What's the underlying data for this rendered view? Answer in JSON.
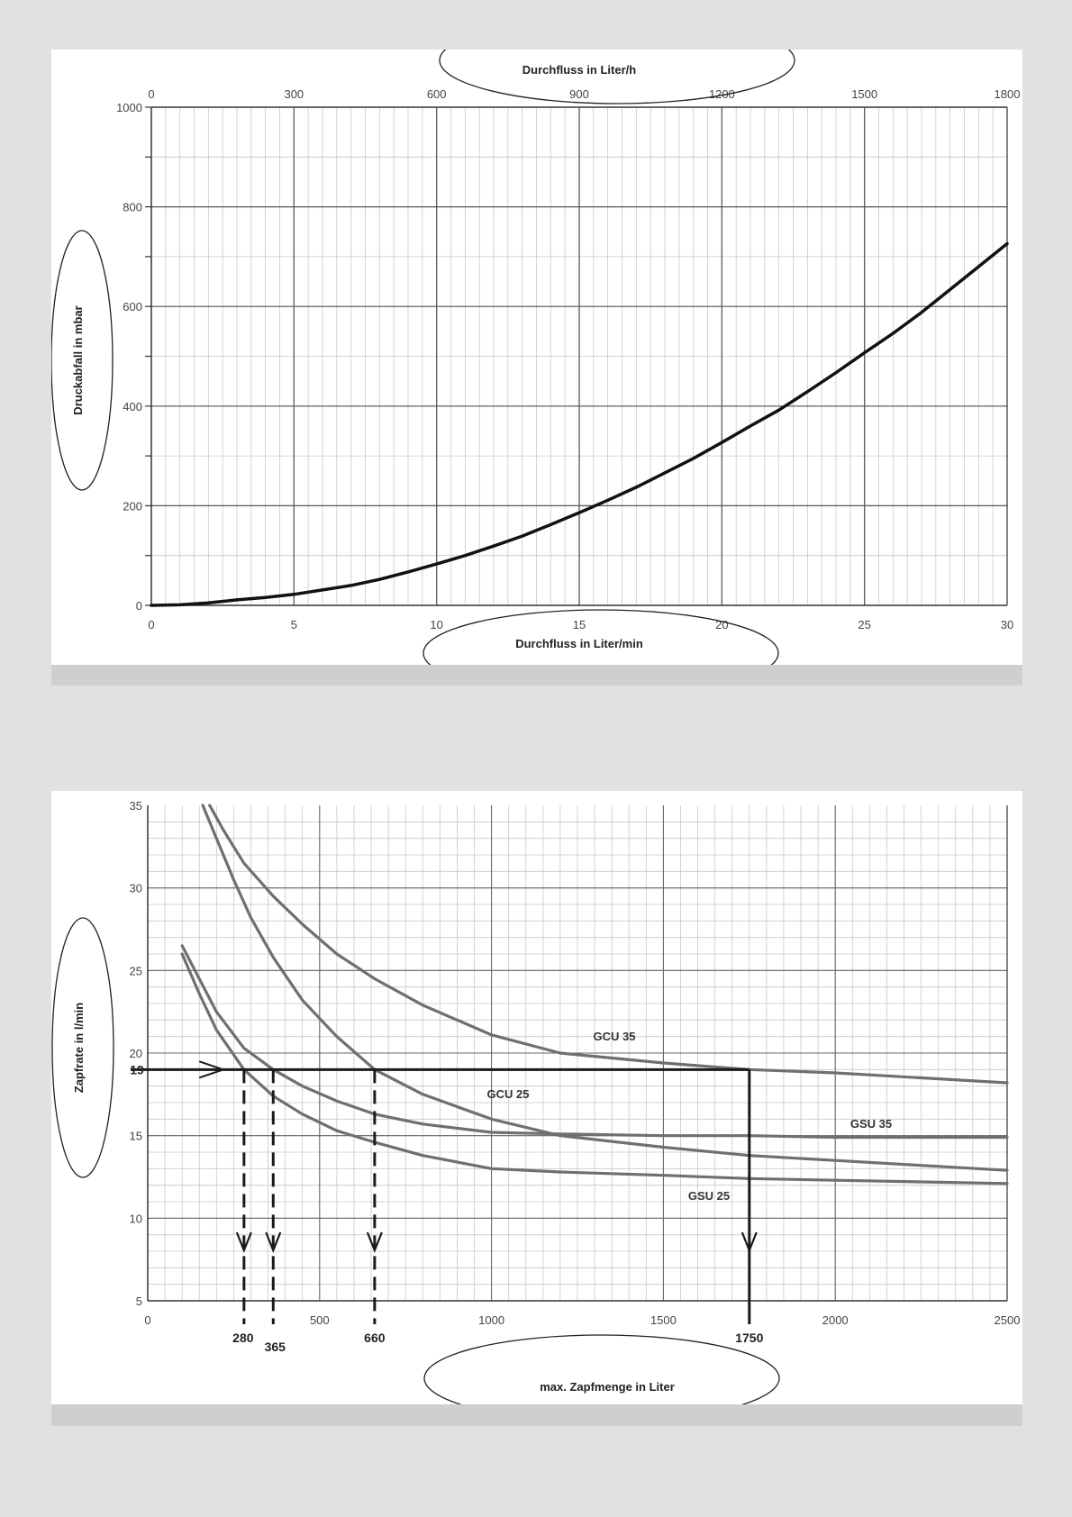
{
  "chart_data": [
    {
      "type": "line",
      "title": "",
      "xlabel": "Durchfluss in Liter/min",
      "x2label": "Durchfluss in Liter/h",
      "ylabel": "Druckabfall in mbar",
      "xlim": [
        0,
        30
      ],
      "x2lim": [
        0,
        1800
      ],
      "ylim": [
        0,
        1000
      ],
      "x_ticks": [
        "0",
        "5",
        "10",
        "15",
        "20",
        "25",
        "30"
      ],
      "x2_ticks": [
        "0",
        "300",
        "600",
        "900",
        "1200",
        "1500",
        "1800"
      ],
      "y_ticks": [
        "0",
        "200",
        "400",
        "600",
        "800",
        "1000"
      ],
      "grid": true,
      "series": [
        {
          "x": [
            0,
            1,
            2,
            3,
            4,
            5,
            6,
            7,
            8,
            9,
            10,
            11,
            12,
            13,
            14,
            15,
            16,
            17,
            18,
            19,
            20,
            21,
            22,
            23,
            24,
            25,
            26,
            27,
            28,
            29,
            30
          ],
          "values": [
            0,
            1,
            5,
            11,
            16,
            22,
            31,
            40,
            52,
            67,
            83,
            100,
            119,
            139,
            162,
            186,
            211,
            237,
            266,
            295,
            327,
            360,
            392,
            429,
            467,
            507,
            546,
            588,
            634,
            680,
            726
          ]
        }
      ]
    },
    {
      "type": "line",
      "title": "",
      "xlabel": "max. Zapfmenge in Liter",
      "ylabel": "Zapfrate in l/min",
      "xlim": [
        0,
        2500
      ],
      "ylim": [
        5,
        35
      ],
      "x_ticks": [
        "0",
        "500",
        "1000",
        "1500",
        "2000",
        "2500"
      ],
      "y_ticks": [
        "5",
        "10",
        "15",
        "20",
        "25",
        "30",
        "35"
      ],
      "grid": true,
      "series": [
        {
          "name": "GCU 35",
          "x": [
            180,
            220,
            280,
            365,
            450,
            550,
            660,
            800,
            1000,
            1200,
            1500,
            1750,
            2000,
            2250,
            2500
          ],
          "values": [
            35,
            33.5,
            31.5,
            29.5,
            27.8,
            26,
            24.5,
            22.9,
            21.1,
            20,
            19.4,
            19,
            18.8,
            18.5,
            18.2
          ]
        },
        {
          "name": "GCU 25",
          "x": [
            160,
            200,
            250,
            300,
            365,
            450,
            550,
            660,
            800,
            1000,
            1200,
            1500,
            1750,
            2000,
            2250,
            2500
          ],
          "values": [
            35,
            33,
            30.5,
            28.2,
            25.8,
            23.2,
            21,
            19,
            17.5,
            16,
            15,
            14.3,
            13.8,
            13.5,
            13.2,
            12.9
          ]
        },
        {
          "name": "GSU 35",
          "x": [
            100,
            150,
            200,
            280,
            365,
            450,
            550,
            660,
            800,
            1000,
            1200,
            1500,
            1750,
            2000,
            2250,
            2500
          ],
          "values": [
            26.5,
            24.5,
            22.5,
            20.3,
            19,
            18,
            17.1,
            16.3,
            15.7,
            15.2,
            15.1,
            15,
            15,
            14.9,
            14.9,
            14.9
          ]
        },
        {
          "name": "GSU 25",
          "x": [
            100,
            150,
            200,
            280,
            365,
            450,
            550,
            660,
            800,
            1000,
            1200,
            1500,
            1750,
            2000,
            2250,
            2500
          ],
          "values": [
            26,
            23.6,
            21.4,
            19,
            17.4,
            16.3,
            15.3,
            14.6,
            13.8,
            13,
            12.8,
            12.6,
            12.4,
            12.3,
            12.2,
            12.1
          ]
        }
      ],
      "reference": {
        "y_label": "19",
        "y_value": 19,
        "marks": [
          {
            "label": "280",
            "value": 280
          },
          {
            "label": "365",
            "value": 365
          },
          {
            "label": "660",
            "value": 660
          },
          {
            "label": "1750",
            "value": 1750
          }
        ]
      }
    }
  ]
}
